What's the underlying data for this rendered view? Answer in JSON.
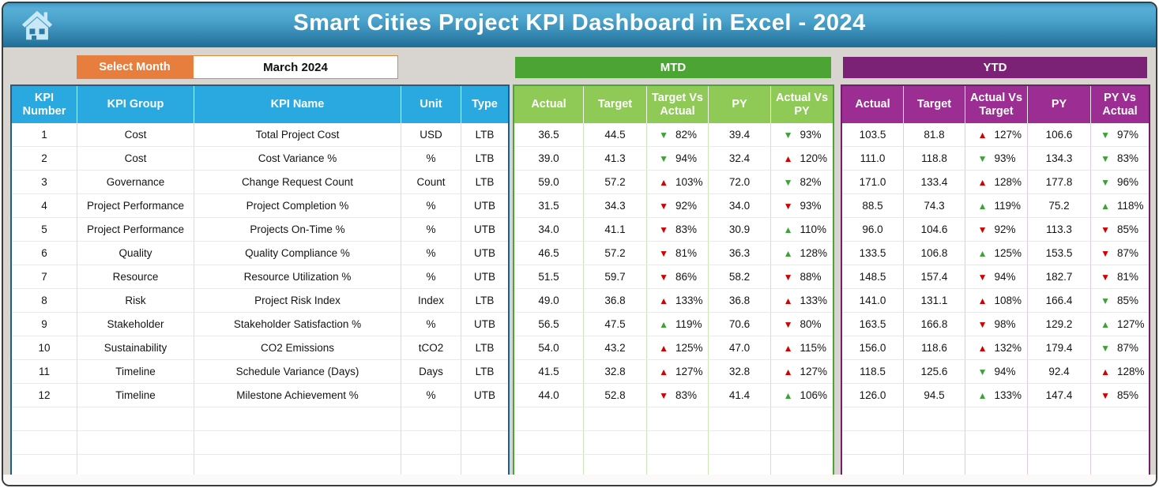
{
  "title": "Smart Cities Project KPI Dashboard in Excel - 2024",
  "controls": {
    "select_month_label": "Select Month",
    "selected_month": "March 2024"
  },
  "left_table": {
    "headers": [
      "KPI Number",
      "KPI Group",
      "KPI Name",
      "Unit",
      "Type"
    ],
    "rows": [
      [
        "1",
        "Cost",
        "Total Project Cost",
        "USD",
        "LTB"
      ],
      [
        "2",
        "Cost",
        "Cost Variance %",
        "%",
        "LTB"
      ],
      [
        "3",
        "Governance",
        "Change Request Count",
        "Count",
        "LTB"
      ],
      [
        "4",
        "Project Performance",
        "Project Completion %",
        "%",
        "UTB"
      ],
      [
        "5",
        "Project Performance",
        "Projects On-Time %",
        "%",
        "UTB"
      ],
      [
        "6",
        "Quality",
        "Quality Compliance %",
        "%",
        "UTB"
      ],
      [
        "7",
        "Resource",
        "Resource Utilization %",
        "%",
        "UTB"
      ],
      [
        "8",
        "Risk",
        "Project Risk Index",
        "Index",
        "LTB"
      ],
      [
        "9",
        "Stakeholder",
        "Stakeholder Satisfaction %",
        "%",
        "UTB"
      ],
      [
        "10",
        "Sustainability",
        "CO2 Emissions",
        "tCO2",
        "LTB"
      ],
      [
        "11",
        "Timeline",
        "Schedule Variance (Days)",
        "Days",
        "LTB"
      ],
      [
        "12",
        "Timeline",
        "Milestone Achievement %",
        "%",
        "UTB"
      ]
    ],
    "empty_rows": 3
  },
  "mtd": {
    "band": "MTD",
    "headers": [
      "Actual",
      "Target",
      "Target Vs Actual",
      "PY",
      "Actual Vs PY"
    ],
    "rows": [
      [
        "36.5",
        "44.5",
        {
          "dir": "down",
          "color": "green",
          "value": "82%"
        },
        "39.4",
        {
          "dir": "down",
          "color": "green",
          "value": "93%"
        }
      ],
      [
        "39.0",
        "41.3",
        {
          "dir": "down",
          "color": "green",
          "value": "94%"
        },
        "32.4",
        {
          "dir": "up",
          "color": "red",
          "value": "120%"
        }
      ],
      [
        "59.0",
        "57.2",
        {
          "dir": "up",
          "color": "red",
          "value": "103%"
        },
        "72.0",
        {
          "dir": "down",
          "color": "green",
          "value": "82%"
        }
      ],
      [
        "31.5",
        "34.3",
        {
          "dir": "down",
          "color": "red",
          "value": "92%"
        },
        "34.0",
        {
          "dir": "down",
          "color": "red",
          "value": "93%"
        }
      ],
      [
        "34.0",
        "41.1",
        {
          "dir": "down",
          "color": "red",
          "value": "83%"
        },
        "30.9",
        {
          "dir": "up",
          "color": "green",
          "value": "110%"
        }
      ],
      [
        "46.5",
        "57.2",
        {
          "dir": "down",
          "color": "red",
          "value": "81%"
        },
        "36.3",
        {
          "dir": "up",
          "color": "green",
          "value": "128%"
        }
      ],
      [
        "51.5",
        "59.7",
        {
          "dir": "down",
          "color": "red",
          "value": "86%"
        },
        "58.2",
        {
          "dir": "down",
          "color": "red",
          "value": "88%"
        }
      ],
      [
        "49.0",
        "36.8",
        {
          "dir": "up",
          "color": "red",
          "value": "133%"
        },
        "36.8",
        {
          "dir": "up",
          "color": "red",
          "value": "133%"
        }
      ],
      [
        "56.5",
        "47.5",
        {
          "dir": "up",
          "color": "green",
          "value": "119%"
        },
        "70.6",
        {
          "dir": "down",
          "color": "red",
          "value": "80%"
        }
      ],
      [
        "54.0",
        "43.2",
        {
          "dir": "up",
          "color": "red",
          "value": "125%"
        },
        "47.0",
        {
          "dir": "up",
          "color": "red",
          "value": "115%"
        }
      ],
      [
        "41.5",
        "32.8",
        {
          "dir": "up",
          "color": "red",
          "value": "127%"
        },
        "32.8",
        {
          "dir": "up",
          "color": "red",
          "value": "127%"
        }
      ],
      [
        "44.0",
        "52.8",
        {
          "dir": "down",
          "color": "red",
          "value": "83%"
        },
        "41.4",
        {
          "dir": "up",
          "color": "green",
          "value": "106%"
        }
      ]
    ],
    "empty_rows": 3
  },
  "ytd": {
    "band": "YTD",
    "headers": [
      "Actual",
      "Target",
      "Actual Vs Target",
      "PY",
      "PY Vs Actual"
    ],
    "rows": [
      [
        "103.5",
        "81.8",
        {
          "dir": "up",
          "color": "red",
          "value": "127%"
        },
        "106.6",
        {
          "dir": "down",
          "color": "green",
          "value": "97%"
        }
      ],
      [
        "111.0",
        "118.8",
        {
          "dir": "down",
          "color": "green",
          "value": "93%"
        },
        "134.3",
        {
          "dir": "down",
          "color": "green",
          "value": "83%"
        }
      ],
      [
        "171.0",
        "133.4",
        {
          "dir": "up",
          "color": "red",
          "value": "128%"
        },
        "177.8",
        {
          "dir": "down",
          "color": "green",
          "value": "96%"
        }
      ],
      [
        "88.5",
        "74.3",
        {
          "dir": "up",
          "color": "green",
          "value": "119%"
        },
        "75.2",
        {
          "dir": "up",
          "color": "green",
          "value": "118%"
        }
      ],
      [
        "96.0",
        "104.6",
        {
          "dir": "down",
          "color": "red",
          "value": "92%"
        },
        "113.3",
        {
          "dir": "down",
          "color": "red",
          "value": "85%"
        }
      ],
      [
        "133.5",
        "106.8",
        {
          "dir": "up",
          "color": "green",
          "value": "125%"
        },
        "153.5",
        {
          "dir": "down",
          "color": "red",
          "value": "87%"
        }
      ],
      [
        "148.5",
        "157.4",
        {
          "dir": "down",
          "color": "red",
          "value": "94%"
        },
        "182.7",
        {
          "dir": "down",
          "color": "red",
          "value": "81%"
        }
      ],
      [
        "141.0",
        "131.1",
        {
          "dir": "up",
          "color": "red",
          "value": "108%"
        },
        "166.4",
        {
          "dir": "down",
          "color": "green",
          "value": "85%"
        }
      ],
      [
        "163.5",
        "166.8",
        {
          "dir": "down",
          "color": "red",
          "value": "98%"
        },
        "129.2",
        {
          "dir": "up",
          "color": "green",
          "value": "127%"
        }
      ],
      [
        "156.0",
        "118.6",
        {
          "dir": "up",
          "color": "red",
          "value": "132%"
        },
        "179.4",
        {
          "dir": "down",
          "color": "green",
          "value": "87%"
        }
      ],
      [
        "118.5",
        "125.6",
        {
          "dir": "down",
          "color": "green",
          "value": "94%"
        },
        "92.4",
        {
          "dir": "up",
          "color": "red",
          "value": "128%"
        }
      ],
      [
        "126.0",
        "94.5",
        {
          "dir": "up",
          "color": "green",
          "value": "133%"
        },
        "147.4",
        {
          "dir": "down",
          "color": "red",
          "value": "85%"
        }
      ]
    ],
    "empty_rows": 3
  },
  "icons": {
    "home": "home-icon",
    "up_arrow": "up-arrow-icon",
    "down_arrow": "down-arrow-icon"
  },
  "colors": {
    "titlebar_gradient_top": "#58aed5",
    "titlebar_gradient_bottom": "#206d96",
    "select_month_bg": "#e87e3d",
    "kpi_header_bg": "#29a9e0",
    "kpi_border": "#1c5f87",
    "mtd_band_bg": "#4ca435",
    "mtd_header_bg": "#8fc956",
    "ytd_band_bg": "#7b2176",
    "ytd_header_bg": "#9c2d92",
    "arrow_red": "#d40000",
    "arrow_green": "#3da235"
  }
}
